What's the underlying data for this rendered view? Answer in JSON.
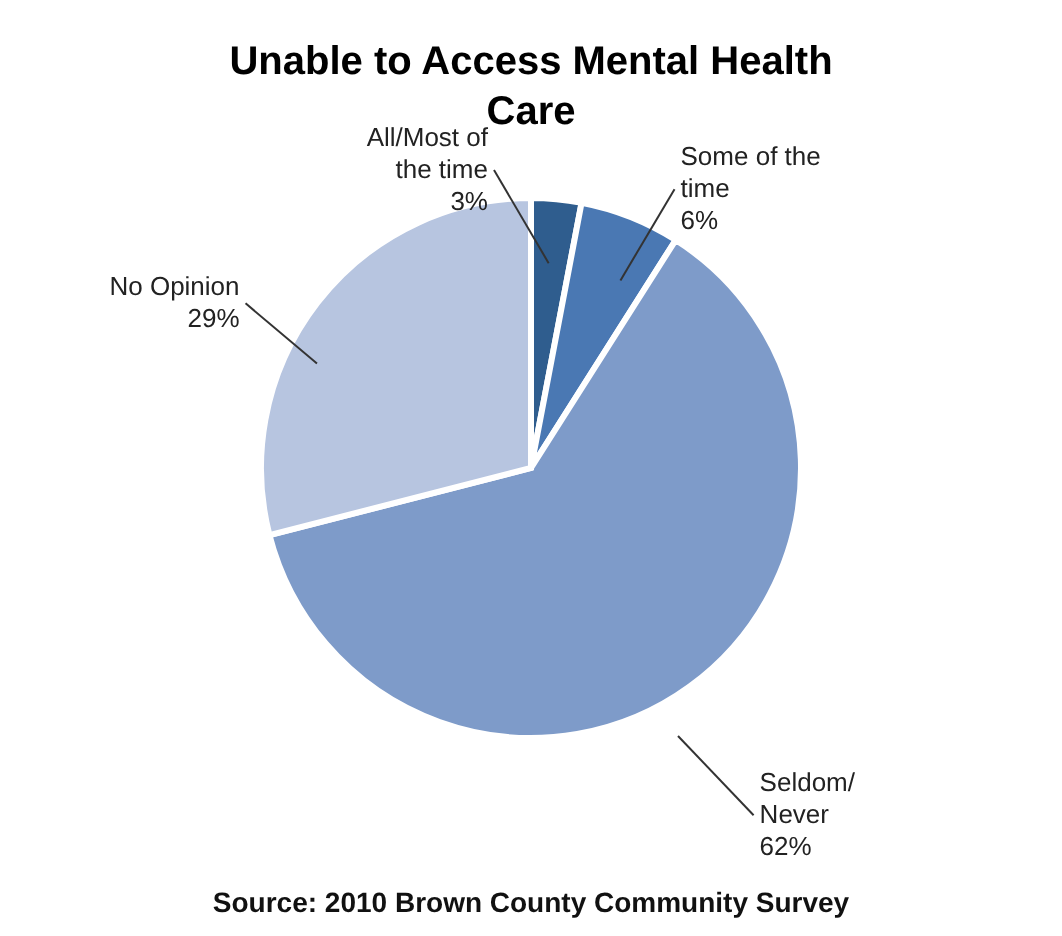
{
  "chart_data": {
    "type": "pie",
    "title": "Unable to Access Mental Health Care",
    "categories": [
      "All/Most of the time",
      "Some of the time",
      "Seldom/ Never",
      "No Opinion"
    ],
    "values": [
      3,
      6,
      62,
      29
    ],
    "value_labels": [
      "3%",
      "6%",
      "62%",
      "29%"
    ],
    "colors": [
      "#2f5d8e",
      "#4a78b3",
      "#7e9bc9",
      "#b7c5e0"
    ],
    "annotations": [
      "Source: 2010 Brown County Community Survey"
    ]
  }
}
